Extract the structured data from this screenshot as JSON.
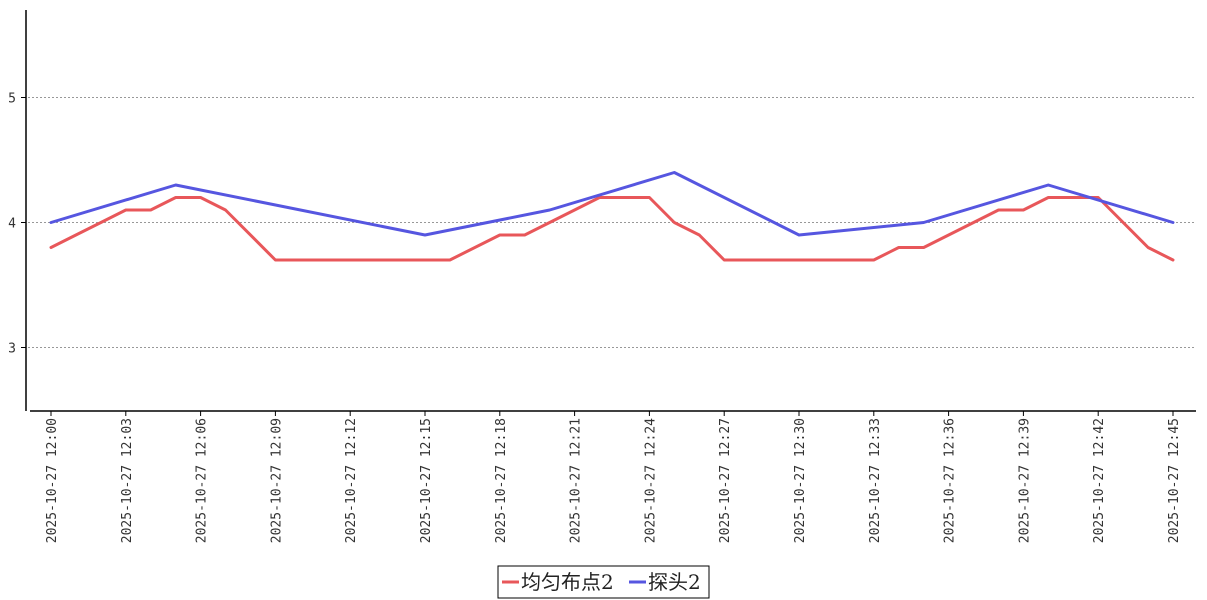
{
  "chart_data": {
    "type": "line",
    "x": [
      "2025-10-27 12:00",
      "2025-10-27 12:01",
      "2025-10-27 12:02",
      "2025-10-27 12:03",
      "2025-10-27 12:04",
      "2025-10-27 12:05",
      "2025-10-27 12:06",
      "2025-10-27 12:07",
      "2025-10-27 12:08",
      "2025-10-27 12:09",
      "2025-10-27 12:10",
      "2025-10-27 12:11",
      "2025-10-27 12:12",
      "2025-10-27 12:13",
      "2025-10-27 12:14",
      "2025-10-27 12:15",
      "2025-10-27 12:16",
      "2025-10-27 12:17",
      "2025-10-27 12:18",
      "2025-10-27 12:19",
      "2025-10-27 12:20",
      "2025-10-27 12:21",
      "2025-10-27 12:22",
      "2025-10-27 12:23",
      "2025-10-27 12:24",
      "2025-10-27 12:25",
      "2025-10-27 12:26",
      "2025-10-27 12:27",
      "2025-10-27 12:28",
      "2025-10-27 12:29",
      "2025-10-27 12:30",
      "2025-10-27 12:31",
      "2025-10-27 12:32",
      "2025-10-27 12:33",
      "2025-10-27 12:34",
      "2025-10-27 12:35",
      "2025-10-27 12:36",
      "2025-10-27 12:37",
      "2025-10-27 12:38",
      "2025-10-27 12:39",
      "2025-10-27 12:40",
      "2025-10-27 12:41",
      "2025-10-27 12:42",
      "2025-10-27 12:43",
      "2025-10-27 12:44",
      "2025-10-27 12:45"
    ],
    "x_tick_labels": [
      "2025-10-27 12:00",
      "2025-10-27 12:03",
      "2025-10-27 12:06",
      "2025-10-27 12:09",
      "2025-10-27 12:12",
      "2025-10-27 12:15",
      "2025-10-27 12:18",
      "2025-10-27 12:21",
      "2025-10-27 12:24",
      "2025-10-27 12:27",
      "2025-10-27 12:30",
      "2025-10-27 12:33",
      "2025-10-27 12:36",
      "2025-10-27 12:39",
      "2025-10-27 12:42",
      "2025-10-27 12:45"
    ],
    "y_ticks": [
      3,
      4,
      5
    ],
    "ylim": [
      2.5,
      5.7
    ],
    "grid": true,
    "legend_position": "bottom-center",
    "series": [
      {
        "name": "均匀布点2",
        "color": "#e8575a",
        "points": [
          {
            "x": "2025-10-27 12:00",
            "y": 3.8
          },
          {
            "x": "2025-10-27 12:01",
            "y": 3.9
          },
          {
            "x": "2025-10-27 12:02",
            "y": 4.0
          },
          {
            "x": "2025-10-27 12:03",
            "y": 4.1
          },
          {
            "x": "2025-10-27 12:04",
            "y": 4.1
          },
          {
            "x": "2025-10-27 12:05",
            "y": 4.2
          },
          {
            "x": "2025-10-27 12:06",
            "y": 4.2
          },
          {
            "x": "2025-10-27 12:07",
            "y": 4.1
          },
          {
            "x": "2025-10-27 12:09",
            "y": 3.7
          },
          {
            "x": "2025-10-27 12:16",
            "y": 3.7
          },
          {
            "x": "2025-10-27 12:18",
            "y": 3.9
          },
          {
            "x": "2025-10-27 12:19",
            "y": 3.9
          },
          {
            "x": "2025-10-27 12:22",
            "y": 4.2
          },
          {
            "x": "2025-10-27 12:24",
            "y": 4.2
          },
          {
            "x": "2025-10-27 12:25",
            "y": 4.0
          },
          {
            "x": "2025-10-27 12:26",
            "y": 3.9
          },
          {
            "x": "2025-10-27 12:27",
            "y": 3.7
          },
          {
            "x": "2025-10-27 12:33",
            "y": 3.7
          },
          {
            "x": "2025-10-27 12:34",
            "y": 3.8
          },
          {
            "x": "2025-10-27 12:35",
            "y": 3.8
          },
          {
            "x": "2025-10-27 12:38",
            "y": 4.1
          },
          {
            "x": "2025-10-27 12:39",
            "y": 4.1
          },
          {
            "x": "2025-10-27 12:40",
            "y": 4.2
          },
          {
            "x": "2025-10-27 12:42",
            "y": 4.2
          },
          {
            "x": "2025-10-27 12:44",
            "y": 3.8
          },
          {
            "x": "2025-10-27 12:45",
            "y": 3.7
          }
        ]
      },
      {
        "name": "探头2",
        "color": "#5656e0",
        "points": [
          {
            "x": "2025-10-27 12:00",
            "y": 4.0
          },
          {
            "x": "2025-10-27 12:05",
            "y": 4.3
          },
          {
            "x": "2025-10-27 12:15",
            "y": 3.9
          },
          {
            "x": "2025-10-27 12:20",
            "y": 4.1
          },
          {
            "x": "2025-10-27 12:25",
            "y": 4.4
          },
          {
            "x": "2025-10-27 12:30",
            "y": 3.9
          },
          {
            "x": "2025-10-27 12:35",
            "y": 4.0
          },
          {
            "x": "2025-10-27 12:40",
            "y": 4.3
          },
          {
            "x": "2025-10-27 12:45",
            "y": 4.0
          }
        ]
      }
    ]
  }
}
